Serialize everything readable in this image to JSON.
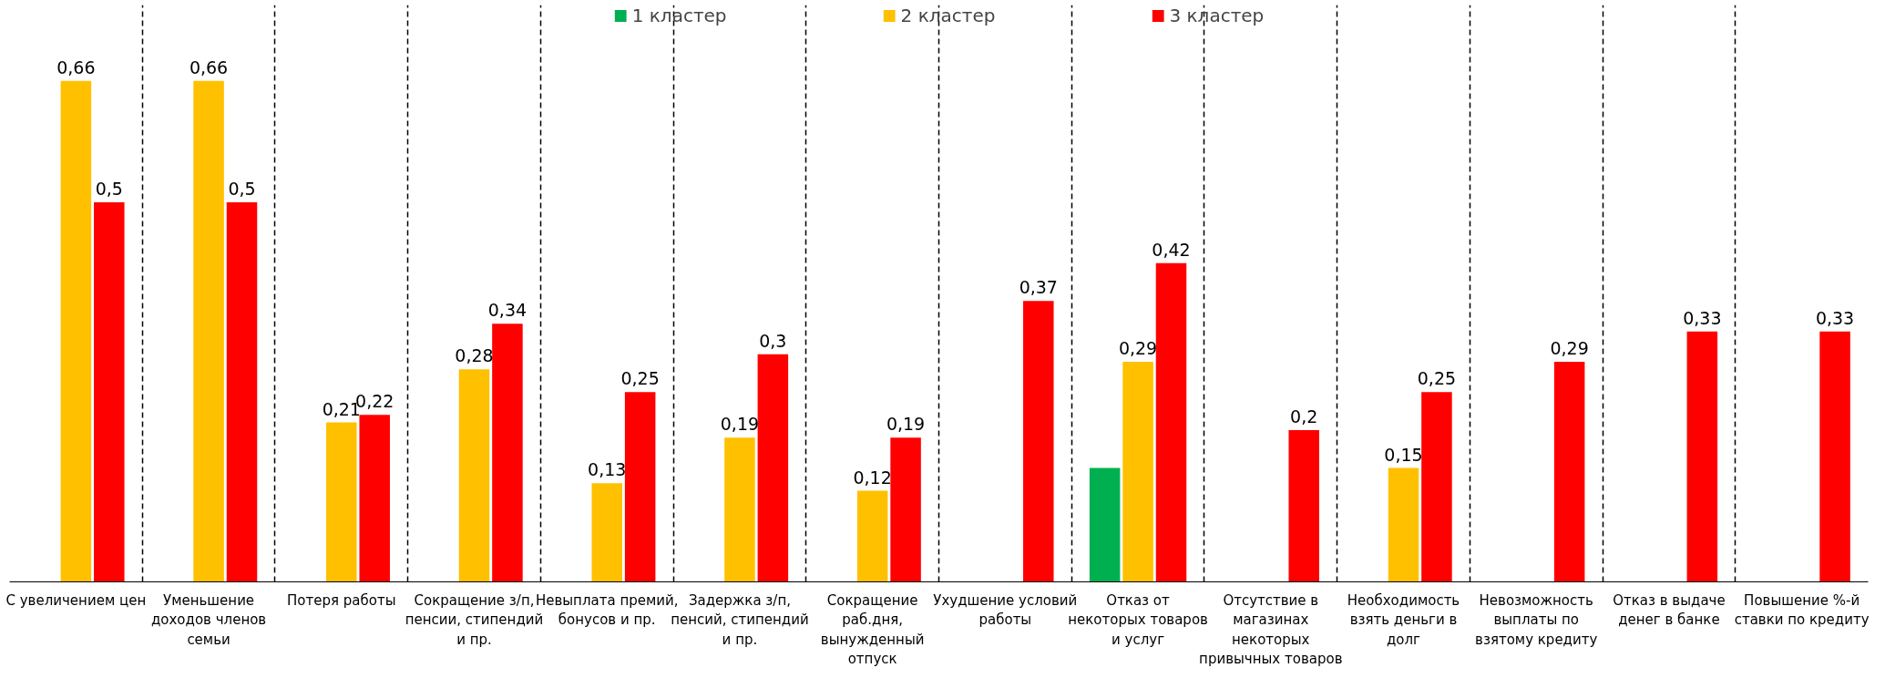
{
  "chart_data": {
    "type": "bar",
    "categories": [
      "С увеличением цен",
      "Уменьшение доходов членов семьи",
      "Потеря работы",
      "Сокращение з/п, пенсии, стипендий и пр.",
      "Невыплата премий, бонусов и пр.",
      "Задержка з/п, пенсий, стипендий и пр.",
      "Сокращение раб.дня, вынужденный отпуск",
      "Ухудшение условий работы",
      "Отказ от некоторых товаров и услуг",
      "Отсутствие в магазинах некоторых привычных товаров",
      "Необходимость взять деньги в долг",
      "Невозможность выплаты по взятому кредиту",
      "Отказ в выдаче денег в банке",
      "Повышение %-й ставки по кредиту"
    ],
    "series": [
      {
        "name": "1 кластер",
        "color": "#00b050",
        "values": [
          null,
          null,
          null,
          null,
          null,
          null,
          null,
          null,
          0.15,
          null,
          null,
          null,
          null,
          null
        ],
        "value_labels": [
          null,
          null,
          null,
          null,
          null,
          null,
          null,
          null,
          null,
          null,
          null,
          null,
          null,
          null
        ]
      },
      {
        "name": "2 кластер",
        "color": "#ffc000",
        "values": [
          0.66,
          0.66,
          0.21,
          0.28,
          0.13,
          0.19,
          0.12,
          null,
          0.29,
          null,
          0.15,
          null,
          null,
          null
        ],
        "value_labels": [
          "0,66",
          "0,66",
          "0,21",
          "0,28",
          "0,13",
          "0,19",
          "0,12",
          null,
          "0,29",
          null,
          "0,15",
          null,
          null,
          null
        ]
      },
      {
        "name": "3 кластер",
        "color": "#ff0000",
        "values": [
          0.5,
          0.5,
          0.22,
          0.34,
          0.25,
          0.3,
          0.19,
          0.37,
          0.42,
          0.2,
          0.25,
          0.29,
          0.33,
          0.33
        ],
        "value_labels": [
          "0,5",
          "0,5",
          "0,22",
          "0,34",
          "0,25",
          "0,3",
          "0,19",
          "0,37",
          "0,42",
          "0,2",
          "0,25",
          "0,29",
          "0,33",
          "0,33"
        ]
      }
    ],
    "ylim": [
      0,
      0.76
    ],
    "tick_labels": "x",
    "grid": "x",
    "legend": "top"
  }
}
